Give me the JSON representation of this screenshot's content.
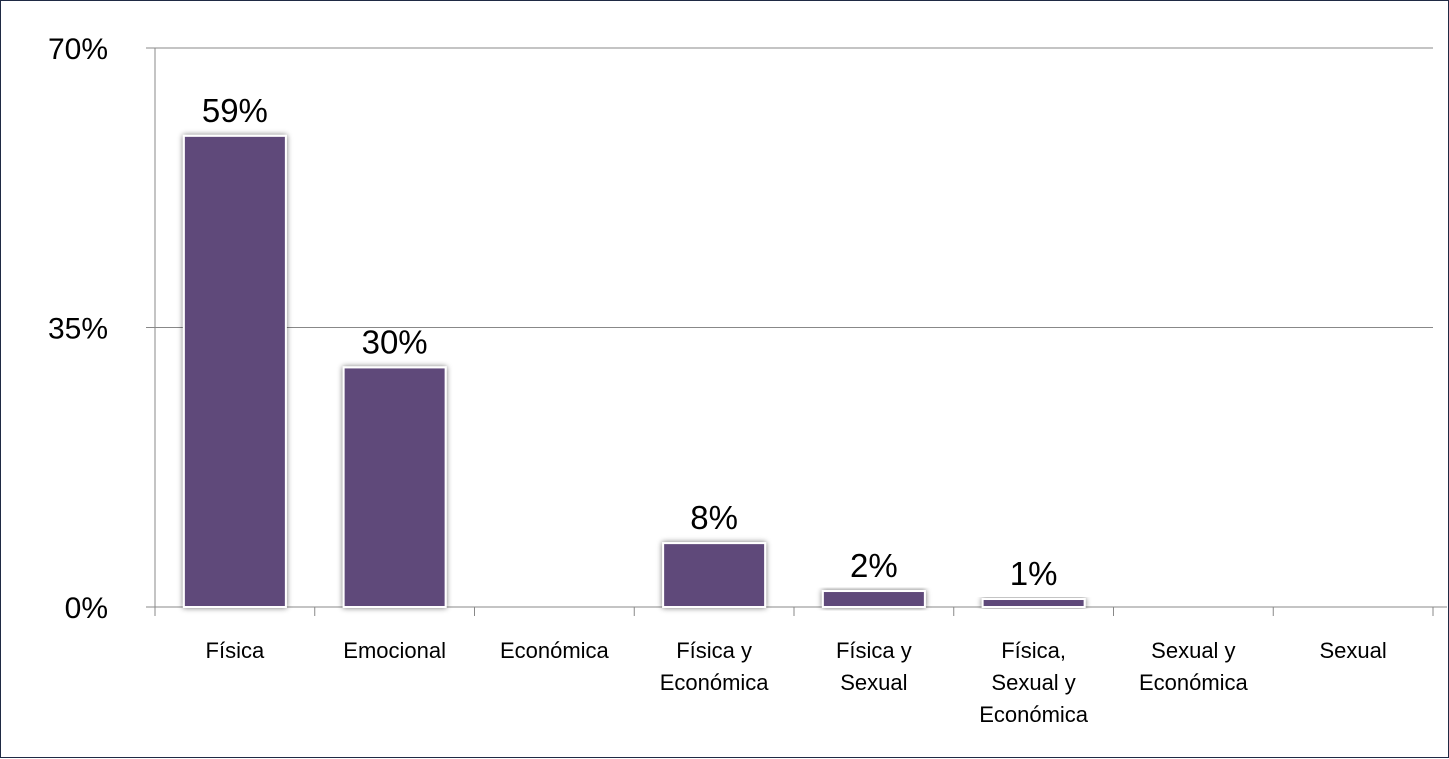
{
  "chart_data": {
    "type": "bar",
    "categories": [
      "Física",
      "Emocional",
      "Económica",
      "Física y Económica",
      "Física y Sexual",
      "Física, Sexual y Económica",
      "Sexual y Económica",
      "Sexual"
    ],
    "category_lines": [
      [
        "Física"
      ],
      [
        "Emocional"
      ],
      [
        "Económica"
      ],
      [
        "Física y",
        "Económica"
      ],
      [
        "Física y",
        "Sexual"
      ],
      [
        "Física,",
        "Sexual y",
        "Económica"
      ],
      [
        "Sexual y",
        "Económica"
      ],
      [
        "Sexual"
      ]
    ],
    "values": [
      59,
      30,
      0,
      8,
      2,
      1,
      0,
      0
    ],
    "data_labels": [
      "59%",
      "30%",
      "",
      "8%",
      "2%",
      "1%",
      "",
      ""
    ],
    "y_ticks": [
      0,
      35,
      70
    ],
    "y_tick_labels": [
      "0%",
      "35%",
      "70%"
    ],
    "ylim": [
      0,
      70
    ],
    "grid": true,
    "bar_color": "#5f4a7a",
    "bar_edge_color": "#ffffff",
    "gridline_color": "#888888",
    "frame_color": "#1f2a44"
  }
}
